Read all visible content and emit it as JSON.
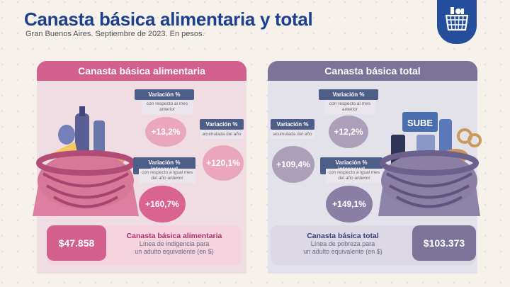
{
  "header": {
    "title": "Canasta básica alimentaria y total",
    "subtitle": "Gran Buenos Aires. Septiembre de 2023. En pesos."
  },
  "alimentaria": {
    "heading": "Canasta básica alimentaria",
    "monthly": {
      "label": "Variación %",
      "detail": "con respecto al mes anterior",
      "value": "+13,2%"
    },
    "yearly": {
      "label": "Variación %",
      "detail": "acumulada del año",
      "value": "+120,1%"
    },
    "interannual": {
      "label": "Variación % interanual",
      "detail": "con respecto a igual mes del año anterior",
      "value": "+160,7%"
    },
    "amount": "$47.858",
    "footer_title": "Canasta básica alimentaria",
    "footer_line1": "Línea de indigencia para",
    "footer_line2": "un adulto equivalente (en $)"
  },
  "total": {
    "heading": "Canasta básica total",
    "monthly": {
      "label": "Variación %",
      "detail": "con respecto al mes anterior",
      "value": "+12,2%"
    },
    "yearly": {
      "label": "Variación %",
      "detail": "acumulada del año",
      "value": "+109,4%"
    },
    "interannual": {
      "label": "Variación % interanual",
      "detail": "con respecto a igual mes del año anterior",
      "value": "+149,1%"
    },
    "amount": "$103.373",
    "footer_title": "Canasta básica total",
    "footer_line1": "Línea de pobreza para",
    "footer_line2": "un adulto equivalente (en $)",
    "card_text": "SUBE"
  },
  "colors": {
    "alimentaria_accent": "#d25f8c",
    "total_accent": "#7c7398",
    "label_bg": "#4d5f89",
    "title": "#1c3f8e"
  },
  "icons": {
    "logo": "shopping-basket-icon"
  }
}
